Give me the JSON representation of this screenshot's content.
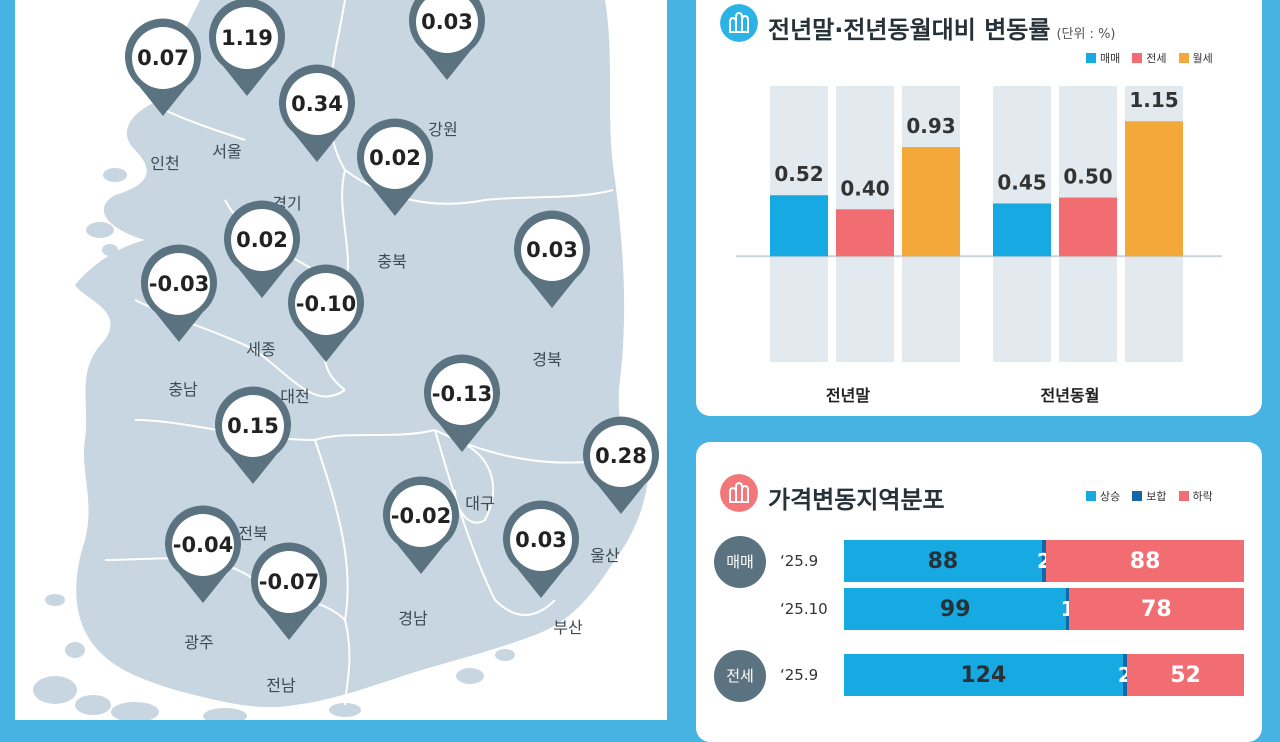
{
  "map": {
    "regions": [
      {
        "name": "인천",
        "value": "0.07"
      },
      {
        "name": "서울",
        "value": "1.19"
      },
      {
        "name": "경기",
        "value": "0.34"
      },
      {
        "name": "강원",
        "value": "0.03"
      },
      {
        "name": "충북",
        "value": "0.02"
      },
      {
        "name": "세종",
        "value": "0.02"
      },
      {
        "name": "충남",
        "value": "-0.03"
      },
      {
        "name": "대전",
        "value": "-0.10"
      },
      {
        "name": "경북",
        "value": "0.03"
      },
      {
        "name": "대구",
        "value": "-0.13"
      },
      {
        "name": "전북",
        "value": "0.15"
      },
      {
        "name": "울산",
        "value": "0.28"
      },
      {
        "name": "경남",
        "value": "-0.02"
      },
      {
        "name": "부산",
        "value": "0.03"
      },
      {
        "name": "광주",
        "value": "-0.04"
      },
      {
        "name": "전남",
        "value": "-0.07"
      }
    ],
    "colors": {
      "land": "#c7d6e0",
      "pin": "#5b7380",
      "sea": "#ffffff"
    }
  },
  "chart1": {
    "title": "전년말·전년동월대비 변동률",
    "unit": "(단위 : %)",
    "legend": [
      {
        "label": "매매",
        "color": "#17a9e1"
      },
      {
        "label": "전세",
        "color": "#f26d72"
      },
      {
        "label": "월세",
        "color": "#f5a83a"
      }
    ]
  },
  "chart2": {
    "title": "가격변동지역분포",
    "legend": [
      {
        "label": "상승",
        "color": "#17a9e1"
      },
      {
        "label": "보합",
        "color": "#1167a8"
      },
      {
        "label": "하락",
        "color": "#f26d72"
      }
    ],
    "groups": [
      {
        "label": "매매",
        "rows": [
          {
            "period": "‘25.9",
            "up": 88,
            "flat": 2,
            "down": 88
          },
          {
            "period": "‘25.10",
            "up": 99,
            "flat": 1,
            "down": 78
          }
        ]
      },
      {
        "label": "전세",
        "rows": [
          {
            "period": "‘25.9",
            "up": 124,
            "flat": 2,
            "down": 52
          }
        ]
      }
    ]
  },
  "chart_data": [
    {
      "type": "bar",
      "title": "전년말·전년동월대비 변동률",
      "unit": "(단위 : %)",
      "categories": [
        "전년말",
        "전년동월"
      ],
      "series": [
        {
          "name": "매매",
          "values": [
            0.52,
            0.45
          ],
          "color": "#17a9e1"
        },
        {
          "name": "전세",
          "values": [
            0.4,
            0.5
          ],
          "color": "#f26d72"
        },
        {
          "name": "월세",
          "values": [
            0.93,
            1.15
          ],
          "color": "#f5a83a"
        }
      ],
      "ylim": [
        -0.9,
        1.45
      ]
    },
    {
      "type": "bar",
      "title": "가격변동지역분포",
      "stacked": true,
      "orientation": "horizontal",
      "categories": [
        "매매 ‘25.9",
        "매매 ‘25.10",
        "전세 ‘25.9"
      ],
      "series": [
        {
          "name": "상승",
          "values": [
            88,
            99,
            124
          ],
          "color": "#17a9e1"
        },
        {
          "name": "보합",
          "values": [
            2,
            1,
            2
          ],
          "color": "#1167a8"
        },
        {
          "name": "하락",
          "values": [
            88,
            78,
            52
          ],
          "color": "#f26d72"
        }
      ]
    }
  ]
}
